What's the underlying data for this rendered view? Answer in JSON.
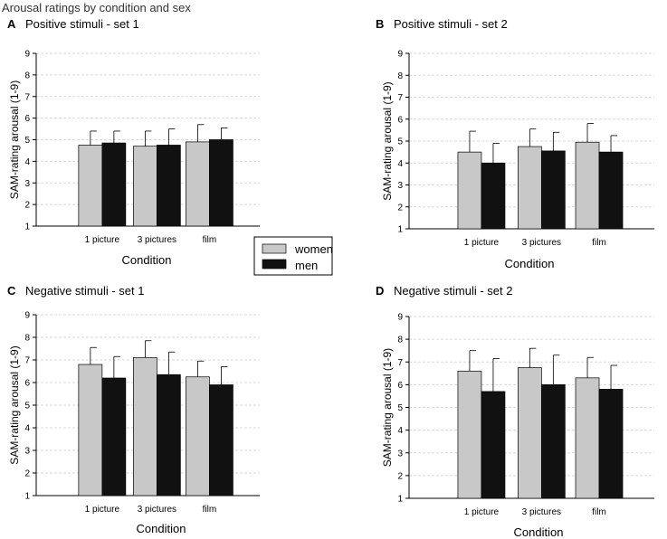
{
  "figure_title": "Arousal ratings by condition and sex",
  "colors": {
    "women": "#c8c8c8",
    "men": "#111111",
    "grid": "#d9d9d9",
    "axis": "#000000"
  },
  "legend": {
    "items": [
      "women",
      "men"
    ],
    "placement": "center"
  },
  "chart_data": [
    {
      "type": "bar",
      "panel": "A",
      "title": "Positive stimuli - set 1",
      "xlabel": "Condition",
      "ylabel": "SAM-rating arousal (1-9)",
      "ylim": [
        1,
        9
      ],
      "yticks": [
        "1",
        "2",
        "3",
        "4",
        "5",
        "6",
        "7",
        "8",
        "9"
      ],
      "grid": true,
      "categories": [
        "1 picture",
        "3 pictures",
        "film"
      ],
      "series": [
        {
          "name": "women",
          "values": [
            4.75,
            4.7,
            4.9
          ],
          "errors": [
            0.65,
            0.7,
            0.8
          ]
        },
        {
          "name": "men",
          "values": [
            4.85,
            4.75,
            5.0
          ],
          "errors": [
            0.55,
            0.75,
            0.55
          ]
        }
      ]
    },
    {
      "type": "bar",
      "panel": "B",
      "title": "Positive stimuli - set 2",
      "xlabel": "Condition",
      "ylabel": "SAM-rating arousal (1-9)",
      "ylim": [
        1,
        9
      ],
      "yticks": [
        "1",
        "2",
        "3",
        "4",
        "5",
        "6",
        "7",
        "8",
        "9"
      ],
      "grid": true,
      "categories": [
        "1 picture",
        "3 pictures",
        "film"
      ],
      "series": [
        {
          "name": "women",
          "values": [
            4.5,
            4.75,
            4.95
          ],
          "errors": [
            0.95,
            0.8,
            0.85
          ]
        },
        {
          "name": "men",
          "values": [
            4.0,
            4.55,
            4.5
          ],
          "errors": [
            0.9,
            0.85,
            0.75
          ]
        }
      ]
    },
    {
      "type": "bar",
      "panel": "C",
      "title": "Negative stimuli - set 1",
      "xlabel": "Condition",
      "ylabel": "SAM-rating arousal (1-9)",
      "ylim": [
        1,
        9
      ],
      "yticks": [
        "1",
        "2",
        "3",
        "4",
        "5",
        "6",
        "7",
        "8",
        "9"
      ],
      "grid": true,
      "categories": [
        "1 picture",
        "3 pictures",
        "film"
      ],
      "series": [
        {
          "name": "women",
          "values": [
            6.8,
            7.1,
            6.25
          ],
          "errors": [
            0.75,
            0.75,
            0.7
          ]
        },
        {
          "name": "men",
          "values": [
            6.2,
            6.35,
            5.9
          ],
          "errors": [
            0.95,
            1.0,
            0.8
          ]
        }
      ]
    },
    {
      "type": "bar",
      "panel": "D",
      "title": "Negative stimuli - set 2",
      "xlabel": "Condition",
      "ylabel": "SAM-rating arousal (1-9)",
      "ylim": [
        1,
        9
      ],
      "yticks": [
        "1",
        "2",
        "3",
        "4",
        "5",
        "6",
        "7",
        "8",
        "9"
      ],
      "grid": true,
      "categories": [
        "1 picture",
        "3 pictures",
        "film"
      ],
      "series": [
        {
          "name": "women",
          "values": [
            6.6,
            6.75,
            6.3
          ],
          "errors": [
            0.9,
            0.85,
            0.9
          ]
        },
        {
          "name": "men",
          "values": [
            5.7,
            6.0,
            5.8
          ],
          "errors": [
            1.45,
            1.3,
            1.05
          ]
        }
      ]
    }
  ]
}
